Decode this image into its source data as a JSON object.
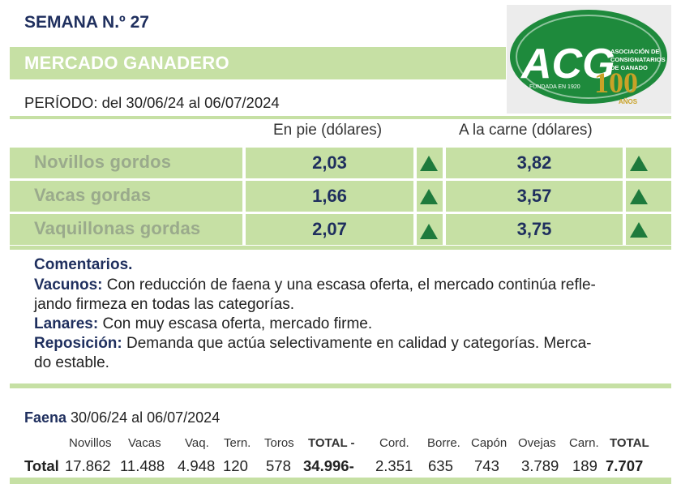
{
  "header": {
    "semana": "SEMANA N.º 27",
    "title": "MERCADO GANADERO",
    "periodo": "PERÍODO: del 30/06/24 al 06/07/2024"
  },
  "logo": {
    "letters": "ACG",
    "line1": "ASOCIACIÓN DE",
    "line2": "CONSIGNATARIOS",
    "line3": "DE GANADO",
    "founded": "FUNDADA EN 1920",
    "anniversary": "100",
    "anniversary_sub": "AÑOS"
  },
  "price_table": {
    "col_en_pie": "En pie (dólares)",
    "col_carne": "A la carne (dólares)",
    "rows": [
      {
        "category": "Novillos gordos",
        "en_pie": "2,03",
        "carne": "3,82",
        "trend": "up"
      },
      {
        "category": "Vacas gordas",
        "en_pie": "1,66",
        "carne": "3,57",
        "trend": "up"
      },
      {
        "category": "Vaquillonas gordas",
        "en_pie": "2,07",
        "carne": "3,75",
        "trend": "up"
      }
    ]
  },
  "comments": {
    "title": "Comentarios.",
    "vacunos_label": "Vacunos:",
    "vacunos_text_1": " Con reducción de faena y una escasa oferta, el mercado continúa refle-",
    "vacunos_text_2": "jando firmeza en todas las categorías.",
    "lanares_label": "Lanares:",
    "lanares_text": " Con muy escasa oferta, mercado firme.",
    "reposicion_label": "Reposición:",
    "reposicion_text_1": " Demanda que actúa selectivamente en calidad y categorías. Merca-",
    "reposicion_text_2": "do estable."
  },
  "faena": {
    "label": "Faena",
    "period": " 30/06/24 al 06/07/2024",
    "headers": [
      "Novillos",
      "Vacas",
      "Vaq.",
      "Tern.",
      "Toros",
      "TOTAL -",
      "Cord.",
      "Borre.",
      "Capón",
      "Ovejas",
      "Carn.",
      "TOTAL"
    ],
    "row_label": "Total",
    "values": [
      "17.862",
      "11.488",
      "4.948",
      "120",
      "578",
      "34.996-",
      "2.351",
      "635",
      "743",
      "3.789",
      "189",
      "7.707"
    ]
  },
  "colors": {
    "band_green": "#c6e0a4",
    "navy": "#1f2f5e",
    "trend_up": "#1e7a3c",
    "category_gray": "#9aaa8c"
  }
}
